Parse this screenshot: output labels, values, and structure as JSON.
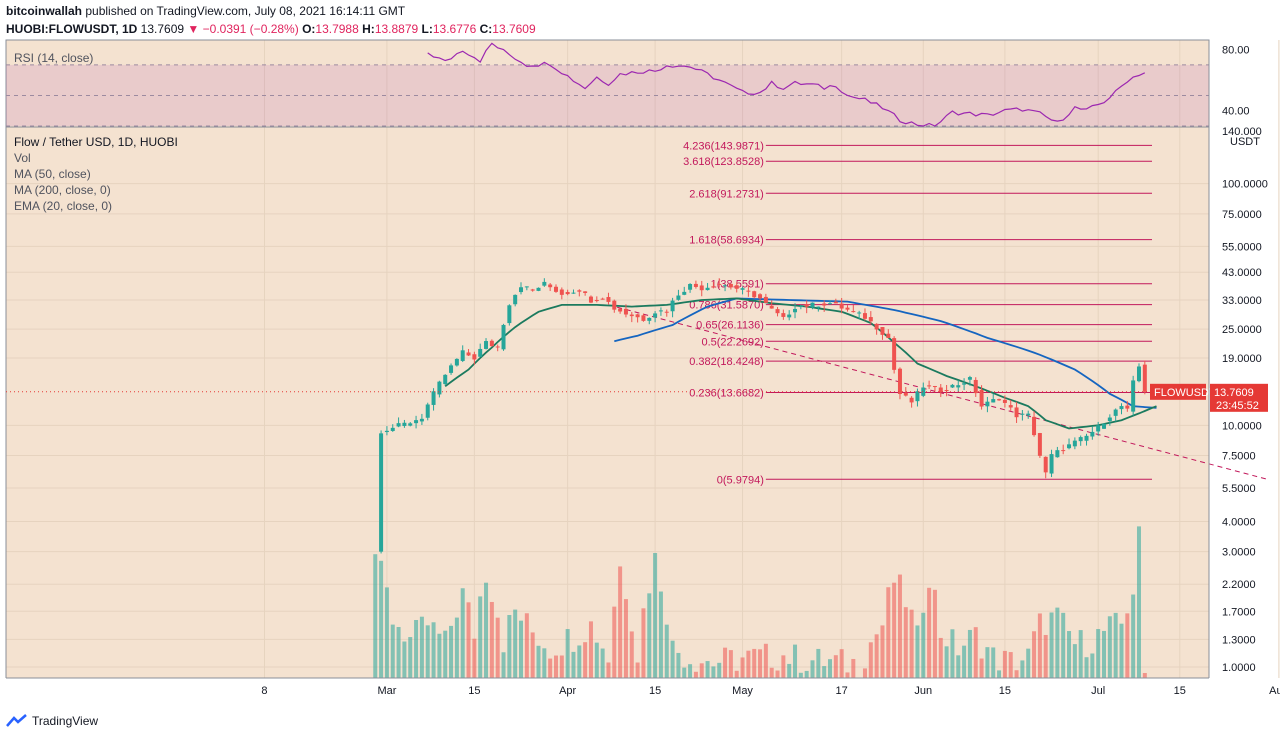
{
  "header": {
    "publisher": "bitcoinwallah",
    "published_text": "published on TradingView.com, July 08, 2021 16:14:11 GMT",
    "symbol": "HUOBI:FLOWUSDT, 1D",
    "last": "13.7609",
    "change": "−0.0391 (−0.28%)",
    "o_label": "O:",
    "o": "13.7988",
    "h_label": "H:",
    "h": "13.8879",
    "l_label": "L:",
    "l": "13.6776",
    "c_label": "C:",
    "c": "13.7609",
    "down_arrow": "▼"
  },
  "legend": {
    "rsi": "RSI (14, close)",
    "title": "Flow / Tether USD, 1D, HUOBI",
    "vol": "Vol",
    "ma50": "MA (50, close)",
    "ma200": "MA (200, close, 0)",
    "ema20": "EMA (20, close, 0)"
  },
  "footer": {
    "brand": "TradingView"
  },
  "colors": {
    "background": "#f4e2d0",
    "up": "#26a69a",
    "down": "#ef5350",
    "fib": "#c2185b",
    "ma50": "#1565c0",
    "ema20": "#1b7a5e",
    "rsi": "#9c27b0",
    "price_tag": "#e53935"
  },
  "chart_data": {
    "type": "candlestick",
    "title": "Flow / Tether USD, 1D, HUOBI",
    "y_scale": "log",
    "ylim": [
      0.9,
      170
    ],
    "y_ticks": [
      "100.0000",
      "75.0000",
      "55.0000",
      "43.0000",
      "33.0000",
      "25.0000",
      "19.0000",
      "10.0000",
      "7.5000",
      "5.5000",
      "4.0000",
      "3.0000",
      "2.2000",
      "1.7000",
      "1.3000",
      "1.0000"
    ],
    "y_tick_top": "140.000",
    "currency": "USDT",
    "x_ticks": [
      "8",
      "Mar",
      "15",
      "Apr",
      "15",
      "May",
      "17",
      "Jun",
      "15",
      "Jul",
      "15",
      "Aug"
    ],
    "x_tick_days": [
      7,
      28,
      43,
      59,
      74,
      89,
      106,
      120,
      134,
      150,
      164,
      181
    ],
    "x_first_day": 4,
    "x_last_day": 188,
    "current_day": 158,
    "current_price_label": "FLOWUSDT",
    "current_price": 13.7609,
    "countdown": "23:45:52",
    "fibonacci": [
      {
        "label": "4.236(143.9871)",
        "value": 143.9871
      },
      {
        "label": "3.618(123.8528)",
        "value": 123.8528
      },
      {
        "label": "2.618(91.2731)",
        "value": 91.2731
      },
      {
        "label": "1.618(58.6934)",
        "value": 58.6934
      },
      {
        "label": "1(38.5591)",
        "value": 38.5591
      },
      {
        "label": "0.786(31.5870)",
        "value": 31.587
      },
      {
        "label": "0.65(26.1136)",
        "value": 26.1136
      },
      {
        "label": "0.5(22.2692)",
        "value": 22.2692
      },
      {
        "label": "0.382(18.4248)",
        "value": 18.4248
      },
      {
        "label": "0.236(13.6682)",
        "value": 13.6682
      },
      {
        "label": "0(5.9794)",
        "value": 5.9794
      }
    ],
    "fib_start_day": 93,
    "trendline": {
      "from": [
        66,
        31.5
      ],
      "to": [
        179,
        5.98
      ]
    },
    "price_anchors": [
      [
        26,
        1.0
      ],
      [
        27,
        9.5
      ],
      [
        29,
        9.8
      ],
      [
        32,
        10.3
      ],
      [
        34,
        10.8
      ],
      [
        36,
        13.5
      ],
      [
        38,
        16.2
      ],
      [
        41,
        20.0
      ],
      [
        43,
        19.0
      ],
      [
        45,
        22.0
      ],
      [
        47,
        21.0
      ],
      [
        49,
        32.0
      ],
      [
        51,
        38.0
      ],
      [
        53,
        36.0
      ],
      [
        55,
        38.5
      ],
      [
        58,
        35.0
      ],
      [
        61,
        36.5
      ],
      [
        63,
        33.0
      ],
      [
        65,
        34.0
      ],
      [
        67,
        30.5
      ],
      [
        69,
        29.0
      ],
      [
        72,
        27.5
      ],
      [
        74,
        29.5
      ],
      [
        76,
        30.0
      ],
      [
        78,
        35.0
      ],
      [
        80,
        38.0
      ],
      [
        82,
        37.0
      ],
      [
        85,
        38.5
      ],
      [
        87,
        37.5
      ],
      [
        90,
        35.5
      ],
      [
        92,
        33.5
      ],
      [
        94,
        30.0
      ],
      [
        96,
        27.5
      ],
      [
        98,
        31.0
      ],
      [
        101,
        31.5
      ],
      [
        104,
        32.0
      ],
      [
        107,
        30.0
      ],
      [
        110,
        28.0
      ],
      [
        112,
        25.5
      ],
      [
        114,
        23.0
      ],
      [
        115,
        17.0
      ],
      [
        116,
        13.5
      ],
      [
        118,
        12.5
      ],
      [
        120,
        14.5
      ],
      [
        123,
        14.0
      ],
      [
        126,
        14.8
      ],
      [
        128,
        15.5
      ],
      [
        130,
        12.0
      ],
      [
        133,
        13.0
      ],
      [
        136,
        11.0
      ],
      [
        138,
        11.0
      ],
      [
        140,
        7.5
      ],
      [
        141,
        6.3
      ],
      [
        142,
        7.5
      ],
      [
        144,
        8.0
      ],
      [
        146,
        8.5
      ],
      [
        148,
        9.0
      ],
      [
        150,
        9.8
      ],
      [
        152,
        11.0
      ],
      [
        154,
        12.0
      ],
      [
        155,
        11.5
      ],
      [
        156,
        15.0
      ],
      [
        157,
        17.5
      ],
      [
        158,
        13.76
      ]
    ],
    "ma50_anchors": [
      [
        67,
        22.3
      ],
      [
        71,
        23.5
      ],
      [
        77,
        26.0
      ],
      [
        83,
        31.0
      ],
      [
        88,
        33.5
      ],
      [
        97,
        33.0
      ],
      [
        107,
        32.5
      ],
      [
        115,
        30.0
      ],
      [
        123,
        27.0
      ],
      [
        131,
        23.0
      ],
      [
        139,
        20.0
      ],
      [
        146,
        17.0
      ],
      [
        152,
        13.5
      ],
      [
        156,
        12.0
      ],
      [
        160,
        11.8
      ]
    ],
    "ema20_anchors": [
      [
        38,
        14.5
      ],
      [
        42,
        17.0
      ],
      [
        46,
        21.0
      ],
      [
        50,
        25.5
      ],
      [
        54,
        29.5
      ],
      [
        58,
        31.5
      ],
      [
        64,
        31.5
      ],
      [
        70,
        31.0
      ],
      [
        76,
        31.5
      ],
      [
        82,
        33.0
      ],
      [
        88,
        33.5
      ],
      [
        94,
        32.0
      ],
      [
        100,
        31.0
      ],
      [
        106,
        29.5
      ],
      [
        111,
        26.5
      ],
      [
        115,
        22.0
      ],
      [
        119,
        18.0
      ],
      [
        124,
        16.0
      ],
      [
        129,
        14.5
      ],
      [
        134,
        13.0
      ],
      [
        138,
        12.0
      ],
      [
        141,
        10.5
      ],
      [
        145,
        9.7
      ],
      [
        150,
        10.0
      ],
      [
        154,
        10.5
      ],
      [
        157,
        11.2
      ],
      [
        160,
        12.0
      ]
    ],
    "rsi_ylim": [
      30,
      85
    ],
    "rsi_ticks": [
      "80.00",
      "40.00"
    ],
    "rsi_anchors": [
      [
        35,
        78
      ],
      [
        38,
        72
      ],
      [
        41,
        80
      ],
      [
        44,
        73
      ],
      [
        46,
        84
      ],
      [
        48,
        79
      ],
      [
        52,
        70
      ],
      [
        56,
        71
      ],
      [
        60,
        60
      ],
      [
        62,
        55
      ],
      [
        64,
        62
      ],
      [
        66,
        58
      ],
      [
        68,
        64
      ],
      [
        70,
        65
      ],
      [
        72,
        66
      ],
      [
        74,
        66
      ],
      [
        76,
        70
      ],
      [
        80,
        69
      ],
      [
        84,
        62
      ],
      [
        86,
        58
      ],
      [
        89,
        52
      ],
      [
        92,
        52
      ],
      [
        94,
        58
      ],
      [
        96,
        55
      ],
      [
        98,
        58
      ],
      [
        101,
        57
      ],
      [
        103,
        55
      ],
      [
        105,
        57
      ],
      [
        107,
        50
      ],
      [
        110,
        47
      ],
      [
        113,
        42
      ],
      [
        116,
        34
      ],
      [
        119,
        31
      ],
      [
        122,
        30
      ],
      [
        125,
        39
      ],
      [
        128,
        38
      ],
      [
        131,
        37
      ],
      [
        134,
        40
      ],
      [
        137,
        41
      ],
      [
        140,
        38
      ],
      [
        143,
        32
      ],
      [
        146,
        42
      ],
      [
        148,
        40
      ],
      [
        151,
        46
      ],
      [
        153,
        52
      ],
      [
        155,
        60
      ],
      [
        157,
        64
      ],
      [
        158,
        65
      ]
    ],
    "volume_anchors": [
      [
        26,
        3.0
      ],
      [
        27,
        2.4
      ],
      [
        29,
        1.6
      ],
      [
        32,
        1.3
      ],
      [
        35,
        1.5
      ],
      [
        38,
        1.25
      ],
      [
        41,
        2.0
      ],
      [
        43,
        1.4
      ],
      [
        45,
        2.5
      ],
      [
        48,
        1.3
      ],
      [
        50,
        1.7
      ],
      [
        53,
        1.4
      ],
      [
        56,
        1.2
      ],
      [
        60,
        1.35
      ],
      [
        63,
        1.5
      ],
      [
        66,
        1.1
      ],
      [
        68,
        2.6
      ],
      [
        71,
        1.15
      ],
      [
        74,
        2.8
      ],
      [
        77,
        1.2
      ],
      [
        80,
        1.1
      ],
      [
        84,
        1.05
      ],
      [
        88,
        1.08
      ],
      [
        92,
        1.1
      ],
      [
        96,
        1.12
      ],
      [
        100,
        1.07
      ],
      [
        105,
        1.05
      ],
      [
        109,
        1.03
      ],
      [
        113,
        1.5
      ],
      [
        115,
        2.3
      ],
      [
        117,
        1.9
      ],
      [
        119,
        1.3
      ],
      [
        121,
        2.5
      ],
      [
        123,
        1.4
      ],
      [
        126,
        1.2
      ],
      [
        129,
        1.35
      ],
      [
        132,
        1.1
      ],
      [
        135,
        1.05
      ],
      [
        138,
        1.1
      ],
      [
        140,
        1.5
      ],
      [
        141,
        1.55
      ],
      [
        143,
        1.6
      ],
      [
        146,
        1.25
      ],
      [
        149,
        1.3
      ],
      [
        152,
        1.45
      ],
      [
        154,
        1.5
      ],
      [
        156,
        2.1
      ],
      [
        157,
        3.4
      ],
      [
        158,
        0.93
      ]
    ]
  }
}
